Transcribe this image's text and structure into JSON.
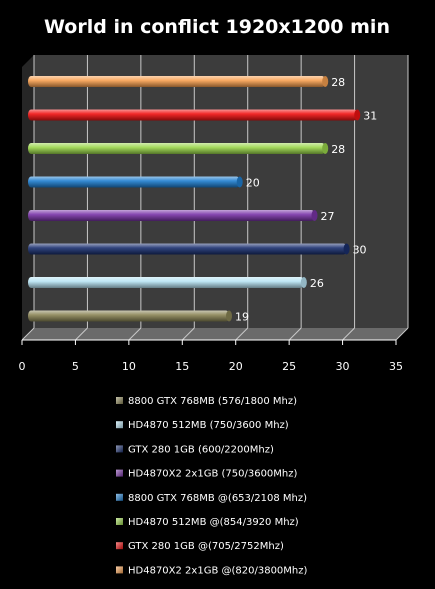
{
  "chart_data": {
    "type": "bar",
    "orientation": "horizontal",
    "style": "3d-cylinder",
    "title": "World in conflict 1920x1200 min",
    "xlim": [
      0,
      35
    ],
    "x_ticks": [
      0,
      5,
      10,
      15,
      20,
      25,
      30,
      35
    ],
    "grid": true,
    "legend_position": "bottom",
    "series": [
      {
        "name": "8800 GTX 768MB (576/1800 Mhz)",
        "value": 19,
        "color": "#8a8455"
      },
      {
        "name": "HD4870 512MB (750/3600 Mhz)",
        "value": 26,
        "color": "#b8e4f4"
      },
      {
        "name": "GTX 280 1GB (600/2200Mhz)",
        "value": 30,
        "color": "#1a2f6e"
      },
      {
        "name": "HD4870X2 2x1GB (750/3600Mhz)",
        "value": 27,
        "color": "#7a34a8"
      },
      {
        "name": "8800 GTX 768MB @(653/2108 Mhz)",
        "value": 20,
        "color": "#1f7ecf"
      },
      {
        "name": "HD4870 512MB @(854/3920 Mhz)",
        "value": 28,
        "color": "#9ad64a"
      },
      {
        "name": "GTX 280 1GB @(705/2752Mhz)",
        "value": 31,
        "color": "#f01010"
      },
      {
        "name": "HD4870X2 2x1GB @(820/3800Mhz)",
        "value": 28,
        "color": "#f8a050"
      }
    ]
  }
}
